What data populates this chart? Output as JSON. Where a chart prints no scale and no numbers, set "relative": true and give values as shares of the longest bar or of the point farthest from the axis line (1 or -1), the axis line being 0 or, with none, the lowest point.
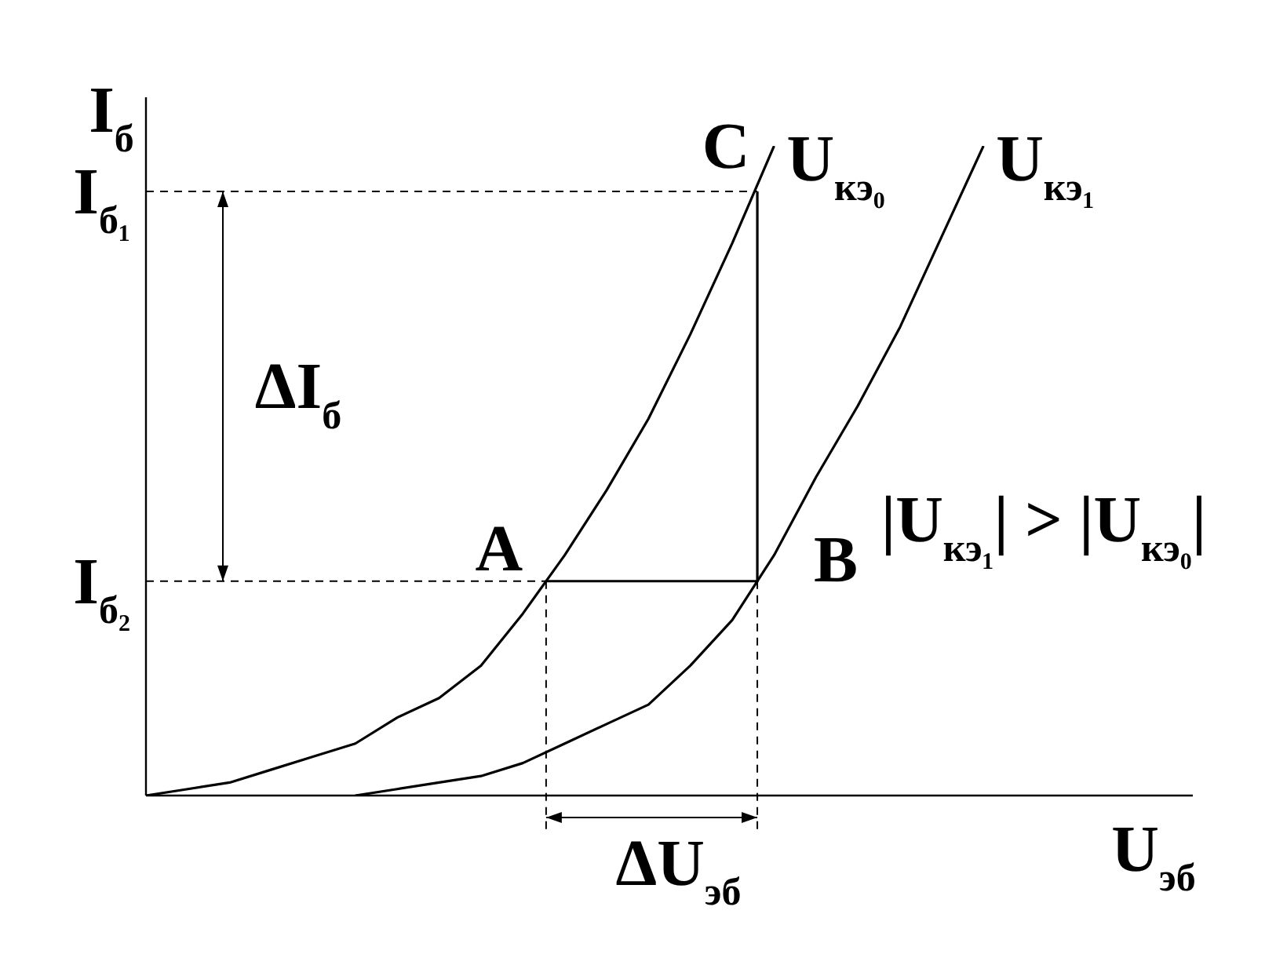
{
  "chart_data": {
    "type": "line",
    "relative": true,
    "xlabel": "U$_{эб}$",
    "ylabel": "I$_{б}$",
    "marker": "none",
    "line_style": "solid",
    "categories": [
      null,
      null,
      null,
      null,
      null,
      null,
      null,
      null,
      null,
      null,
      null,
      null,
      null,
      null,
      null,
      null,
      null,
      null,
      null,
      null,
      null,
      null,
      null,
      null,
      null,
      null
    ],
    "series": [
      {
        "name": "U$_{кэ₀}$",
        "color": "#000000",
        "values": [
          0,
          0.01,
          0.02,
          0.04,
          0.06,
          0.08,
          0.12,
          0.15,
          0.2,
          0.28,
          0.37,
          0.47,
          0.58,
          0.71,
          0.85,
          1.0,
          null,
          null,
          null,
          null,
          null,
          null,
          null,
          null,
          null,
          null
        ]
      },
      {
        "name": "U$_{кэ₁}$",
        "color": "#000000",
        "values": [
          null,
          null,
          null,
          null,
          null,
          0,
          0.01,
          0.02,
          0.03,
          0.05,
          0.08,
          0.11,
          0.14,
          0.2,
          0.27,
          0.37,
          0.49,
          0.6,
          0.72,
          0.86,
          1.0,
          null,
          null,
          null,
          null,
          null
        ]
      }
    ],
    "ref_lines": [
      {
        "axis": "y",
        "value": 0.93,
        "label": "I$_{б₁}$",
        "line_style": "dashed"
      },
      {
        "axis": "y",
        "value": 0.33,
        "label": "I$_{б₂}$",
        "line_style": "dashed"
      }
    ],
    "annotations": [
      "A",
      "B",
      "C",
      "|U$_{кэ₁}$| > |U$_{кэ₀}$|",
      "ΔI$_{б}$",
      "ΔU$_{эб}$"
    ]
  }
}
